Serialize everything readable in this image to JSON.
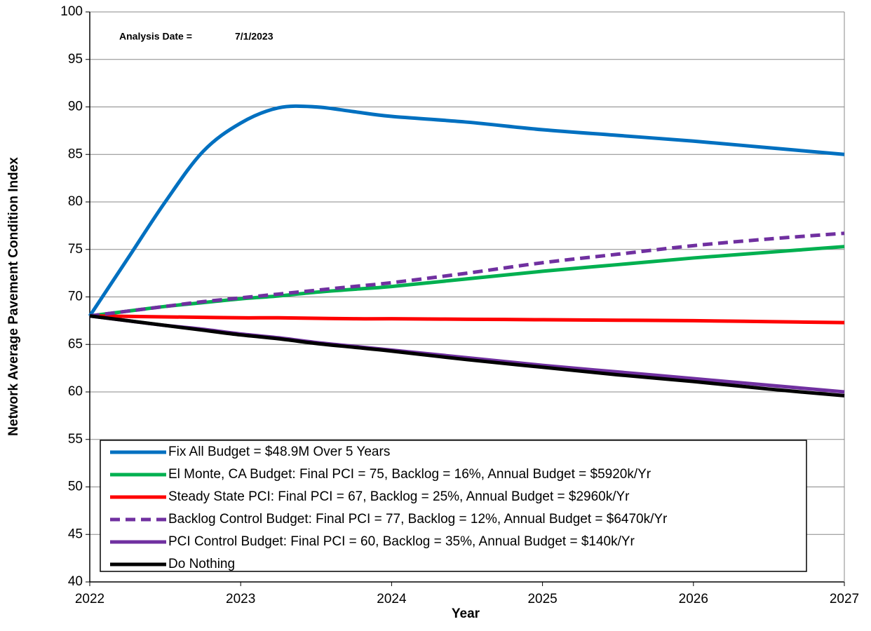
{
  "chart_data": {
    "type": "line",
    "y_label": "Network Average Pavement Condition Index",
    "x_label": "Year",
    "annotations": [
      "Analysis Date =",
      "7/1/2023"
    ],
    "x": [
      2022,
      2022.25,
      2022.5,
      2022.75,
      2023,
      2023.25,
      2023.5,
      2023.75,
      2024,
      2024.5,
      2025,
      2025.5,
      2026,
      2026.5,
      2027
    ],
    "series": [
      {
        "name": "Fix All Budget = $48.9M Over 5 Years",
        "color": "#0070c0",
        "style": "solid",
        "values": [
          68,
          74,
          80,
          85.3,
          88.3,
          89.9,
          90.0,
          89.5,
          89.0,
          88.4,
          87.6,
          87.0,
          86.4,
          85.7,
          85.0
        ]
      },
      {
        "name": "El Monte, CA Budget: Final PCI = 75, Backlog = 16%, Annual Budget = $5920k/Yr",
        "color": "#00b050",
        "style": "solid",
        "values": [
          68,
          68.5,
          69.0,
          69.4,
          69.8,
          70.1,
          70.5,
          70.8,
          71.1,
          71.9,
          72.7,
          73.4,
          74.1,
          74.7,
          75.3
        ]
      },
      {
        "name": "Steady State PCI: Final PCI = 67, Backlog = 25%, Annual Budget = $2960k/Yr",
        "color": "#ff0000",
        "style": "solid",
        "values": [
          68,
          67.95,
          67.9,
          67.85,
          67.8,
          67.8,
          67.75,
          67.7,
          67.7,
          67.65,
          67.6,
          67.55,
          67.5,
          67.4,
          67.3
        ]
      },
      {
        "name": "Backlog Control Budget: Final PCI = 77, Backlog = 12%, Annual Budget = $6470k/Yr",
        "color": "#7030a0",
        "style": "dashed",
        "values": [
          68,
          68.5,
          69.0,
          69.5,
          69.9,
          70.3,
          70.7,
          71.1,
          71.5,
          72.5,
          73.6,
          74.5,
          75.4,
          76.1,
          76.7
        ]
      },
      {
        "name": "PCI Control Budget: Final PCI = 60, Backlog = 35%, Annual Budget = $140k/Yr",
        "color": "#7030a0",
        "style": "solid",
        "values": [
          68,
          67.5,
          67.0,
          66.6,
          66.1,
          65.7,
          65.2,
          64.8,
          64.4,
          63.6,
          62.8,
          62.1,
          61.4,
          60.7,
          60.0
        ]
      },
      {
        "name": "Do Nothing",
        "color": "#000000",
        "style": "solid",
        "values": [
          68,
          67.5,
          67.0,
          66.5,
          66.0,
          65.6,
          65.1,
          64.7,
          64.3,
          63.4,
          62.6,
          61.8,
          61.1,
          60.3,
          59.6
        ]
      }
    ],
    "xlim": [
      2022,
      2027
    ],
    "xticks": [
      2022,
      2023,
      2024,
      2025,
      2026,
      2027
    ],
    "ylim": [
      40,
      100
    ],
    "yticks": [
      40,
      45,
      50,
      55,
      60,
      65,
      70,
      75,
      80,
      85,
      90,
      95,
      100
    ],
    "grid": true,
    "legend": "lower left"
  }
}
